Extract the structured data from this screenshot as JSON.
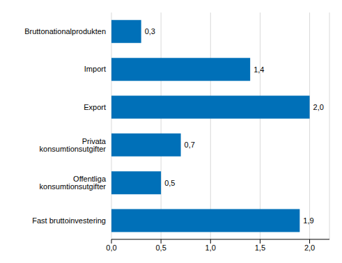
{
  "chart_data": {
    "type": "bar",
    "orientation": "horizontal",
    "categories": [
      "Bruttonationalprodukten",
      "Import",
      "Export",
      "Privata konsumtionsutgifter",
      "Offentliga konsumtionsutgifter",
      "Fast bruttoinvestering"
    ],
    "values": [
      0.3,
      1.4,
      2.0,
      0.7,
      0.5,
      1.9
    ],
    "value_labels": [
      "0,3",
      "1,4",
      "2,0",
      "0,7",
      "0,5",
      "1,9"
    ],
    "data_labels": true,
    "color": "#0070b8",
    "xlim": [
      0,
      2.2
    ],
    "xticks": [
      {
        "value": 0,
        "label": "0,0"
      },
      {
        "value": 0.5,
        "label": "0,5"
      },
      {
        "value": 1,
        "label": "1,0"
      },
      {
        "value": 1.5,
        "label": "1,5"
      },
      {
        "value": 2,
        "label": "2,0"
      }
    ],
    "grid": true
  }
}
